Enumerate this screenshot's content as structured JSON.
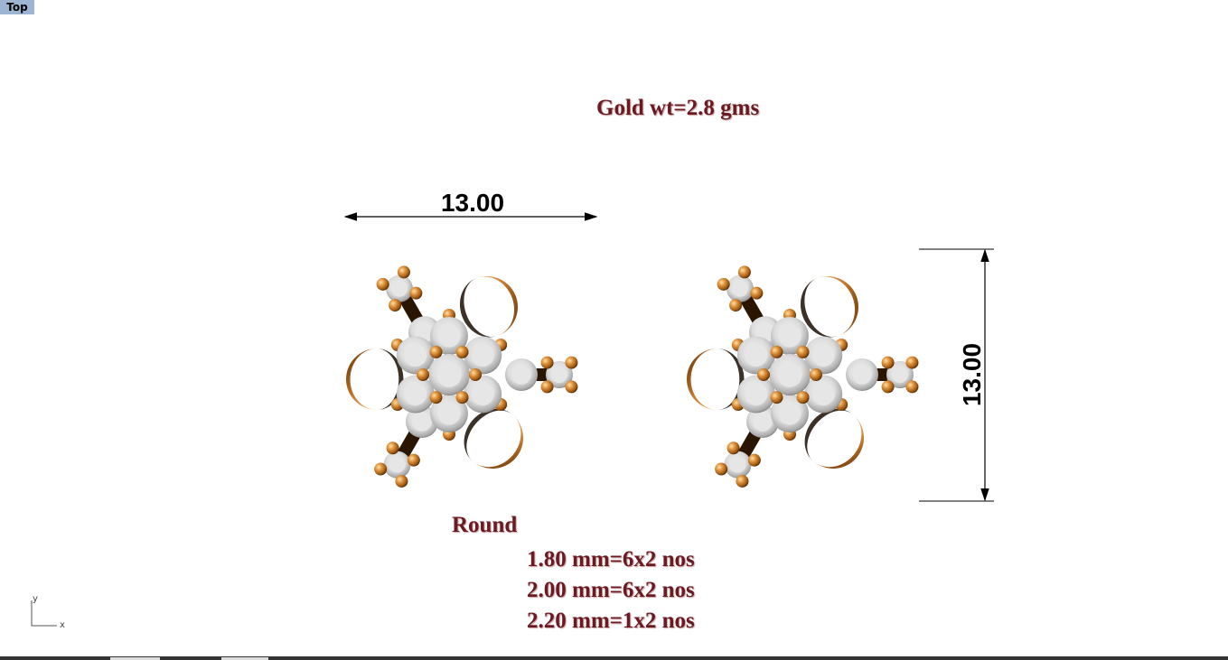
{
  "viewport": {
    "label": "Top"
  },
  "annotations": {
    "gold_weight": "Gold wt=2.8 gms",
    "stone_shape": "Round",
    "stones": [
      "1.80 mm=6x2 nos",
      "2.00 mm=6x2 nos",
      "2.20 mm=1x2 nos"
    ]
  },
  "dimensions": {
    "width": "13.00",
    "height": "13.00"
  },
  "axes": {
    "x": "x",
    "y": "y"
  },
  "colors": {
    "text": "#6b1a22",
    "gold": "#c77a2e",
    "stone": "#e0e0e0",
    "viewport_label_bg": "#9db4d2"
  }
}
